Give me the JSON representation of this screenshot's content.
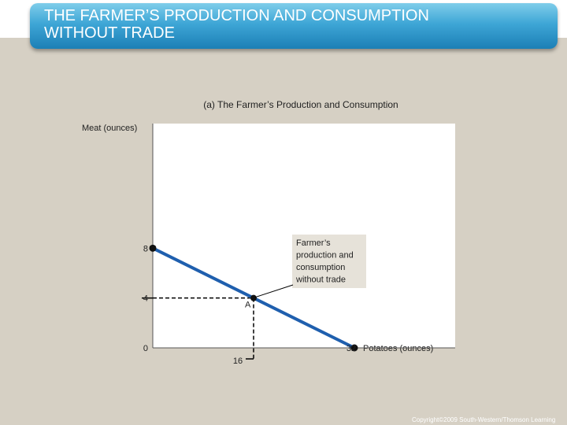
{
  "slide": {
    "title": "THE FARMER’S PRODUCTION AND CONSUMPTION\nWITHOUT TRADE",
    "copyright": "Copyright©2009 South-Western/Thomson Learning"
  },
  "colors": {
    "banner": "#3ea6d6",
    "line": "#1f5fae",
    "background": "#d6d0c4",
    "plot": "#ffffff"
  },
  "chart_data": {
    "type": "line",
    "title": "(a) The Farmer’s Production and Consumption",
    "xlabel": "Potatoes (ounces)",
    "ylabel": "Meat (ounces)",
    "xlim": [
      0,
      48
    ],
    "ylim": [
      0,
      18
    ],
    "series": [
      {
        "name": "",
        "x": [
          0,
          32
        ],
        "y": [
          8,
          0
        ]
      }
    ],
    "endpoints": [
      {
        "x": 0,
        "y": 8
      },
      {
        "x": 32,
        "y": 0
      }
    ],
    "point_A": {
      "label": "A",
      "x": 16,
      "y": 4
    },
    "yticks": [
      "8",
      "4",
      "0"
    ],
    "xticks": [
      "32",
      "16"
    ],
    "annotation": "Farmer’s\nproduction and\nconsumption\nwithout trade"
  }
}
